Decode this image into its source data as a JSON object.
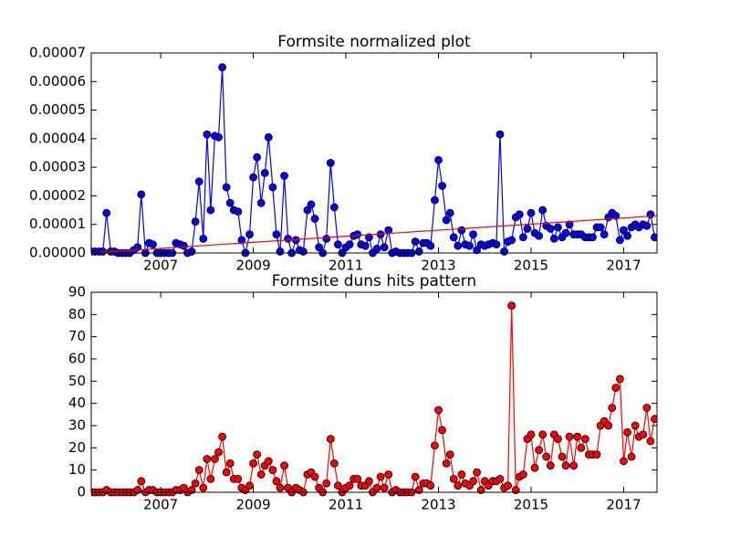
{
  "chart_data": [
    {
      "type": "line",
      "title": "Formsite normalized plot",
      "x": [
        2005.5,
        2005.58,
        2005.67,
        2005.75,
        2005.83,
        2005.92,
        2006.0,
        2006.08,
        2006.17,
        2006.25,
        2006.33,
        2006.42,
        2006.5,
        2006.58,
        2006.67,
        2006.75,
        2006.83,
        2006.92,
        2007.0,
        2007.08,
        2007.17,
        2007.25,
        2007.33,
        2007.42,
        2007.5,
        2007.58,
        2007.67,
        2007.75,
        2007.83,
        2007.92,
        2008.0,
        2008.08,
        2008.17,
        2008.25,
        2008.33,
        2008.42,
        2008.5,
        2008.58,
        2008.67,
        2008.75,
        2008.83,
        2008.92,
        2009.0,
        2009.08,
        2009.17,
        2009.25,
        2009.33,
        2009.42,
        2009.5,
        2009.58,
        2009.67,
        2009.75,
        2009.83,
        2009.92,
        2010.0,
        2010.08,
        2010.17,
        2010.25,
        2010.33,
        2010.42,
        2010.5,
        2010.58,
        2010.67,
        2010.75,
        2010.83,
        2010.92,
        2011.0,
        2011.08,
        2011.17,
        2011.25,
        2011.33,
        2011.42,
        2011.5,
        2011.58,
        2011.67,
        2011.75,
        2011.83,
        2011.92,
        2012.0,
        2012.08,
        2012.17,
        2012.25,
        2012.33,
        2012.42,
        2012.5,
        2012.58,
        2012.67,
        2012.75,
        2012.83,
        2012.92,
        2013.0,
        2013.08,
        2013.17,
        2013.25,
        2013.33,
        2013.42,
        2013.5,
        2013.58,
        2013.67,
        2013.75,
        2013.83,
        2013.92,
        2014.0,
        2014.08,
        2014.17,
        2014.25,
        2014.33,
        2014.42,
        2014.5,
        2014.58,
        2014.67,
        2014.75,
        2014.83,
        2014.92,
        2015.0,
        2015.08,
        2015.17,
        2015.25,
        2015.33,
        2015.42,
        2015.5,
        2015.58,
        2015.67,
        2015.75,
        2015.83,
        2015.92,
        2016.0,
        2016.08,
        2016.17,
        2016.25,
        2016.33,
        2016.42,
        2016.5,
        2016.58,
        2016.67,
        2016.75,
        2016.83,
        2016.92,
        2017.0,
        2017.08,
        2017.17,
        2017.25,
        2017.33,
        2017.42,
        2017.5,
        2017.58,
        2017.67
      ],
      "series": [
        {
          "color": "#0000ff",
          "values": [
            5e-07,
            5e-07,
            5e-07,
            5e-07,
            1.4e-05,
            5e-07,
            5e-07,
            0,
            0,
            0,
            0,
            1e-06,
            2e-06,
            2.05e-05,
            0,
            3.5e-06,
            3e-06,
            0,
            0,
            0,
            0,
            0,
            3.5e-06,
            3e-06,
            2.5e-06,
            0,
            5e-07,
            1.1e-05,
            2.5e-05,
            5e-06,
            4.15e-05,
            1.5e-05,
            4.1e-05,
            4.05e-05,
            6.5e-05,
            2.3e-05,
            1.75e-05,
            1.5e-05,
            1.45e-05,
            4.5e-06,
            0,
            6.5e-06,
            2.65e-05,
            3.35e-05,
            1.75e-05,
            2.8e-05,
            4.05e-05,
            2.3e-05,
            6.5e-06,
            5e-07,
            2.7e-05,
            5e-06,
            0,
            4.5e-06,
            1e-06,
            5e-07,
            1.5e-05,
            1.7e-05,
            1.2e-05,
            2e-06,
            0,
            5e-06,
            3.15e-05,
            1.6e-05,
            3e-06,
            0,
            2e-06,
            3e-06,
            6e-06,
            6.5e-06,
            3e-06,
            2.5e-06,
            5.5e-06,
            0,
            1.5e-06,
            6.5e-06,
            2e-06,
            8e-06,
            0,
            5e-07,
            0,
            0,
            0,
            0,
            4e-06,
            5e-07,
            3.5e-06,
            3.5e-06,
            2.5e-06,
            1.85e-05,
            3.25e-05,
            2.35e-05,
            1.15e-05,
            1.4e-05,
            5.5e-06,
            2.5e-06,
            8e-06,
            3e-06,
            2.5e-06,
            6.5e-06,
            1e-06,
            3e-06,
            2.5e-06,
            3e-06,
            3.5e-06,
            3e-06,
            4.15e-05,
            5e-07,
            4e-06,
            4.5e-06,
            1.25e-05,
            1.35e-05,
            5.5e-06,
            8.5e-06,
            1.4e-05,
            7e-06,
            6e-06,
            1.5e-05,
            9.5e-06,
            8.5e-06,
            5e-06,
            9e-06,
            5.5e-06,
            7e-06,
            1e-05,
            6.5e-06,
            6.5e-06,
            6.5e-06,
            5.5e-06,
            5.5e-06,
            5.5e-06,
            9e-06,
            9e-06,
            6.5e-06,
            1.25e-05,
            1.4e-05,
            1.3e-05,
            4.5e-06,
            8e-06,
            6e-06,
            9e-06,
            1e-05,
            9e-06,
            1e-05,
            9.5e-06,
            1.35e-05,
            5.5e-06
          ]
        }
      ],
      "trend": {
        "color": "#ff0000",
        "x": [
          2005.5,
          2017.72
        ],
        "values": [
          0,
          1.3e-05
        ]
      },
      "xlim": [
        2005.5,
        2017.72
      ],
      "xticks": [
        2007,
        2009,
        2011,
        2013,
        2015,
        2017
      ],
      "ylim": [
        0,
        7e-05
      ],
      "yticks": [
        {
          "value": 0,
          "label": "0.00000"
        },
        {
          "value": 1e-05,
          "label": "0.00001"
        },
        {
          "value": 2e-05,
          "label": "0.00002"
        },
        {
          "value": 3e-05,
          "label": "0.00003"
        },
        {
          "value": 4e-05,
          "label": "0.00004"
        },
        {
          "value": 5e-05,
          "label": "0.00005"
        },
        {
          "value": 6e-05,
          "label": "0.00006"
        },
        {
          "value": 7e-05,
          "label": "0.00007"
        }
      ]
    },
    {
      "type": "line",
      "title": "Formsite duns hits pattern",
      "x": [
        2005.5,
        2005.58,
        2005.67,
        2005.75,
        2005.83,
        2005.92,
        2006.0,
        2006.08,
        2006.17,
        2006.25,
        2006.33,
        2006.42,
        2006.5,
        2006.58,
        2006.67,
        2006.75,
        2006.83,
        2006.92,
        2007.0,
        2007.08,
        2007.17,
        2007.25,
        2007.33,
        2007.42,
        2007.5,
        2007.58,
        2007.67,
        2007.75,
        2007.83,
        2007.92,
        2008.0,
        2008.08,
        2008.17,
        2008.25,
        2008.33,
        2008.42,
        2008.5,
        2008.58,
        2008.67,
        2008.75,
        2008.83,
        2008.92,
        2009.0,
        2009.08,
        2009.17,
        2009.25,
        2009.33,
        2009.42,
        2009.5,
        2009.58,
        2009.67,
        2009.75,
        2009.83,
        2009.92,
        2010.0,
        2010.08,
        2010.17,
        2010.25,
        2010.33,
        2010.42,
        2010.5,
        2010.58,
        2010.67,
        2010.75,
        2010.83,
        2010.92,
        2011.0,
        2011.08,
        2011.17,
        2011.25,
        2011.33,
        2011.42,
        2011.5,
        2011.58,
        2011.67,
        2011.75,
        2011.83,
        2011.92,
        2012.0,
        2012.08,
        2012.17,
        2012.25,
        2012.33,
        2012.42,
        2012.5,
        2012.58,
        2012.67,
        2012.75,
        2012.83,
        2012.92,
        2013.0,
        2013.08,
        2013.17,
        2013.25,
        2013.33,
        2013.42,
        2013.5,
        2013.58,
        2013.67,
        2013.75,
        2013.83,
        2013.92,
        2014.0,
        2014.08,
        2014.17,
        2014.25,
        2014.33,
        2014.42,
        2014.5,
        2014.58,
        2014.67,
        2014.75,
        2014.83,
        2014.92,
        2015.0,
        2015.08,
        2015.17,
        2015.25,
        2015.33,
        2015.42,
        2015.5,
        2015.58,
        2015.67,
        2015.75,
        2015.83,
        2015.92,
        2016.0,
        2016.08,
        2016.17,
        2016.25,
        2016.33,
        2016.42,
        2016.5,
        2016.58,
        2016.67,
        2016.75,
        2016.83,
        2016.92,
        2017.0,
        2017.08,
        2017.17,
        2017.25,
        2017.33,
        2017.42,
        2017.5,
        2017.58,
        2017.67
      ],
      "series": [
        {
          "color": "#ff0000",
          "values": [
            0,
            0,
            0,
            0,
            1,
            0,
            0,
            0,
            0,
            0,
            0,
            0,
            1,
            5,
            0,
            1,
            1,
            0,
            0,
            0,
            0,
            0,
            1,
            1,
            2,
            0,
            1,
            4,
            10,
            2,
            15,
            6,
            15,
            18,
            25,
            9,
            13,
            6,
            6,
            2,
            1,
            3,
            13,
            17,
            8,
            12,
            14,
            10,
            5,
            2,
            12,
            2,
            0,
            2,
            1,
            0,
            8,
            9,
            7,
            2,
            0,
            4,
            24,
            13,
            3,
            0,
            2,
            3,
            6,
            6,
            3,
            3,
            5,
            0,
            2,
            7,
            2,
            8,
            0,
            1,
            0,
            0,
            0,
            0,
            7,
            1,
            4,
            4,
            3,
            21,
            37,
            28,
            13,
            17,
            6,
            3,
            8,
            4,
            3,
            5,
            9,
            1,
            5,
            3,
            5,
            5,
            6,
            2,
            3,
            84,
            1,
            7,
            8,
            24,
            26,
            11,
            19,
            26,
            16,
            12,
            26,
            24,
            16,
            12,
            25,
            12,
            25,
            20,
            24,
            17,
            17,
            17,
            30,
            32,
            30,
            38,
            47,
            51,
            14,
            27,
            16,
            30,
            25,
            26,
            38,
            23,
            33
          ]
        }
      ],
      "xlim": [
        2005.5,
        2017.72
      ],
      "xticks": [
        2007,
        2009,
        2011,
        2013,
        2015,
        2017
      ],
      "ylim": [
        0,
        90
      ],
      "yticks": [
        0,
        10,
        20,
        30,
        40,
        50,
        60,
        70,
        80,
        90
      ]
    }
  ]
}
